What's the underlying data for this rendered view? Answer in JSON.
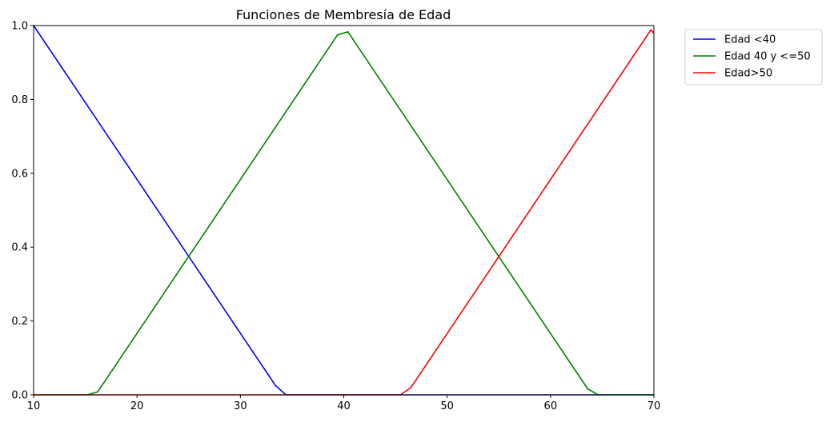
{
  "chart_data": {
    "type": "line",
    "title": "Funciones de Membresía de Edad",
    "xlabel": "",
    "ylabel": "",
    "xlim": [
      10,
      70
    ],
    "ylim": [
      0,
      1
    ],
    "x_ticks": [
      10,
      20,
      30,
      40,
      50,
      60,
      70
    ],
    "y_ticks": [
      0.0,
      0.2,
      0.4,
      0.6,
      0.8,
      1.0
    ],
    "x_tick_labels": [
      "10",
      "20",
      "30",
      "40",
      "50",
      "60",
      "70"
    ],
    "y_tick_labels": [
      "0.0",
      "0.2",
      "0.4",
      "0.6",
      "0.8",
      "1.0"
    ],
    "grid": false,
    "legend_placement": "outside-top-right",
    "series": [
      {
        "name": "Edad <40",
        "color": "#0000ff",
        "x": [
          10,
          33.4,
          34.4,
          70
        ],
        "y": [
          1.0,
          0.025,
          0.0,
          0.0
        ]
      },
      {
        "name": "Edad 40 y <=50",
        "color": "#008000",
        "x": [
          10,
          15.2,
          16.2,
          39.4,
          40.4,
          63.6,
          64.6,
          70
        ],
        "y": [
          0.0,
          0.0,
          0.008,
          0.975,
          0.983,
          0.016,
          0.0,
          0.0
        ]
      },
      {
        "name": "Edad>50",
        "color": "#ff0000",
        "x": [
          10,
          45.5,
          46.5,
          69.7,
          70
        ],
        "y": [
          0.0,
          0.0,
          0.02,
          0.988,
          0.98
        ]
      }
    ]
  }
}
